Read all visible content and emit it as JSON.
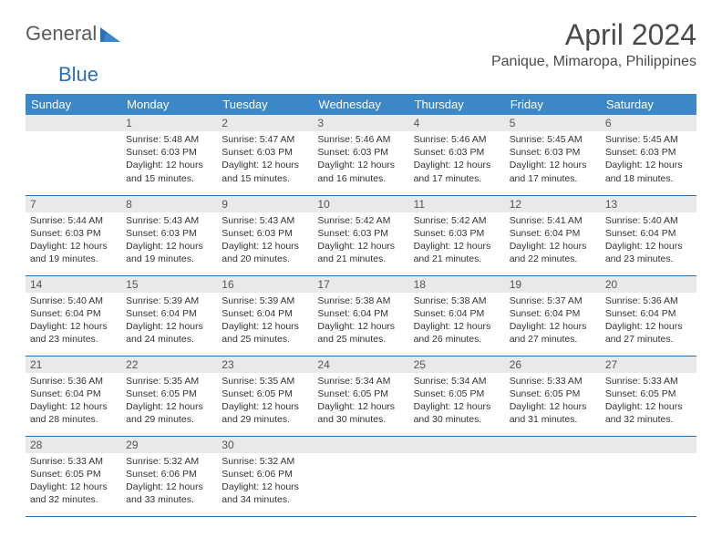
{
  "logo": {
    "part1": "General",
    "part2": "Blue"
  },
  "title": "April 2024",
  "location": "Panique, Mimaropa, Philippines",
  "colors": {
    "header_bg": "#3b87c8",
    "border": "#2b6fb5",
    "daynum_bg": "#e9e9e9"
  },
  "weekdays": [
    "Sunday",
    "Monday",
    "Tuesday",
    "Wednesday",
    "Thursday",
    "Friday",
    "Saturday"
  ],
  "weeks": [
    [
      null,
      {
        "n": "1",
        "sr": "5:48 AM",
        "ss": "6:03 PM",
        "dl": "12 hours and 15 minutes."
      },
      {
        "n": "2",
        "sr": "5:47 AM",
        "ss": "6:03 PM",
        "dl": "12 hours and 15 minutes."
      },
      {
        "n": "3",
        "sr": "5:46 AM",
        "ss": "6:03 PM",
        "dl": "12 hours and 16 minutes."
      },
      {
        "n": "4",
        "sr": "5:46 AM",
        "ss": "6:03 PM",
        "dl": "12 hours and 17 minutes."
      },
      {
        "n": "5",
        "sr": "5:45 AM",
        "ss": "6:03 PM",
        "dl": "12 hours and 17 minutes."
      },
      {
        "n": "6",
        "sr": "5:45 AM",
        "ss": "6:03 PM",
        "dl": "12 hours and 18 minutes."
      }
    ],
    [
      {
        "n": "7",
        "sr": "5:44 AM",
        "ss": "6:03 PM",
        "dl": "12 hours and 19 minutes."
      },
      {
        "n": "8",
        "sr": "5:43 AM",
        "ss": "6:03 PM",
        "dl": "12 hours and 19 minutes."
      },
      {
        "n": "9",
        "sr": "5:43 AM",
        "ss": "6:03 PM",
        "dl": "12 hours and 20 minutes."
      },
      {
        "n": "10",
        "sr": "5:42 AM",
        "ss": "6:03 PM",
        "dl": "12 hours and 21 minutes."
      },
      {
        "n": "11",
        "sr": "5:42 AM",
        "ss": "6:03 PM",
        "dl": "12 hours and 21 minutes."
      },
      {
        "n": "12",
        "sr": "5:41 AM",
        "ss": "6:04 PM",
        "dl": "12 hours and 22 minutes."
      },
      {
        "n": "13",
        "sr": "5:40 AM",
        "ss": "6:04 PM",
        "dl": "12 hours and 23 minutes."
      }
    ],
    [
      {
        "n": "14",
        "sr": "5:40 AM",
        "ss": "6:04 PM",
        "dl": "12 hours and 23 minutes."
      },
      {
        "n": "15",
        "sr": "5:39 AM",
        "ss": "6:04 PM",
        "dl": "12 hours and 24 minutes."
      },
      {
        "n": "16",
        "sr": "5:39 AM",
        "ss": "6:04 PM",
        "dl": "12 hours and 25 minutes."
      },
      {
        "n": "17",
        "sr": "5:38 AM",
        "ss": "6:04 PM",
        "dl": "12 hours and 25 minutes."
      },
      {
        "n": "18",
        "sr": "5:38 AM",
        "ss": "6:04 PM",
        "dl": "12 hours and 26 minutes."
      },
      {
        "n": "19",
        "sr": "5:37 AM",
        "ss": "6:04 PM",
        "dl": "12 hours and 27 minutes."
      },
      {
        "n": "20",
        "sr": "5:36 AM",
        "ss": "6:04 PM",
        "dl": "12 hours and 27 minutes."
      }
    ],
    [
      {
        "n": "21",
        "sr": "5:36 AM",
        "ss": "6:04 PM",
        "dl": "12 hours and 28 minutes."
      },
      {
        "n": "22",
        "sr": "5:35 AM",
        "ss": "6:05 PM",
        "dl": "12 hours and 29 minutes."
      },
      {
        "n": "23",
        "sr": "5:35 AM",
        "ss": "6:05 PM",
        "dl": "12 hours and 29 minutes."
      },
      {
        "n": "24",
        "sr": "5:34 AM",
        "ss": "6:05 PM",
        "dl": "12 hours and 30 minutes."
      },
      {
        "n": "25",
        "sr": "5:34 AM",
        "ss": "6:05 PM",
        "dl": "12 hours and 30 minutes."
      },
      {
        "n": "26",
        "sr": "5:33 AM",
        "ss": "6:05 PM",
        "dl": "12 hours and 31 minutes."
      },
      {
        "n": "27",
        "sr": "5:33 AM",
        "ss": "6:05 PM",
        "dl": "12 hours and 32 minutes."
      }
    ],
    [
      {
        "n": "28",
        "sr": "5:33 AM",
        "ss": "6:05 PM",
        "dl": "12 hours and 32 minutes."
      },
      {
        "n": "29",
        "sr": "5:32 AM",
        "ss": "6:06 PM",
        "dl": "12 hours and 33 minutes."
      },
      {
        "n": "30",
        "sr": "5:32 AM",
        "ss": "6:06 PM",
        "dl": "12 hours and 34 minutes."
      },
      null,
      null,
      null,
      null
    ]
  ],
  "labels": {
    "sunrise": "Sunrise:",
    "sunset": "Sunset:",
    "daylight": "Daylight:"
  }
}
